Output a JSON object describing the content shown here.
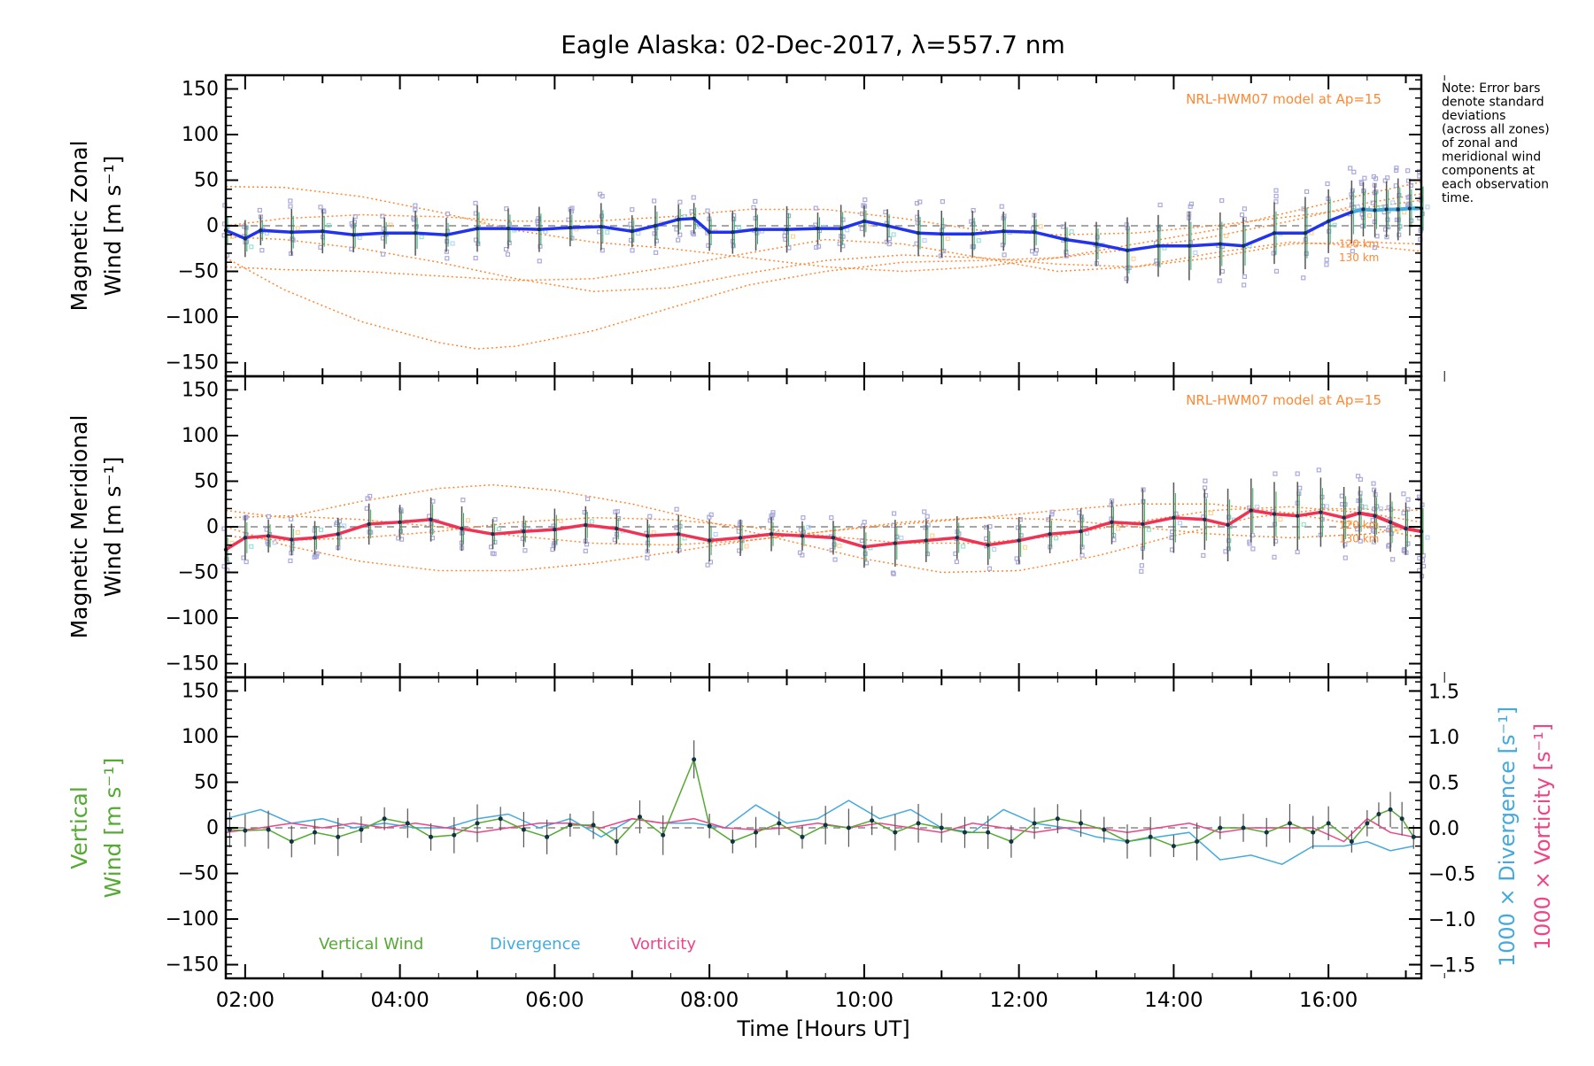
{
  "title": "Eagle Alaska: 02-Dec-2017, λ=557.7 nm",
  "note": [
    "Note: Error bars",
    "denote standard",
    "deviations",
    "(across all zones)",
    "of zonal and",
    "meridional wind",
    "components at",
    "each observation",
    "time."
  ],
  "xaxis": {
    "label": "Time [Hours UT]",
    "range": [
      1.75,
      17.2
    ],
    "ticks": [
      2,
      4,
      6,
      8,
      10,
      12,
      14,
      16
    ],
    "tick_labels": [
      "02:00",
      "04:00",
      "06:00",
      "08:00",
      "10:00",
      "12:00",
      "14:00",
      "16:00"
    ]
  },
  "colors": {
    "zonal": "#2233ee",
    "zonal_tail": "#44aadd",
    "meridional": "#ee3355",
    "model": "#ff8833",
    "scatter": "#aaaadd",
    "vertical": "#55aa33",
    "divergence": "#44aadd",
    "vorticity": "#ee4488",
    "errorbar": "#555555",
    "dashed": "#888888"
  },
  "chart_data": [
    {
      "type": "line",
      "panel": "zonal",
      "ylabel": [
        "Magnetic Zonal",
        "Wind [m s⁻¹]"
      ],
      "ylim": [
        -165,
        165
      ],
      "yticks": [
        -150,
        -100,
        -50,
        0,
        50,
        100,
        150
      ],
      "model_label": "NRL-HWM07 model at Ap=15",
      "altitude_labels": [
        "120 km",
        "130 km"
      ],
      "series": [
        {
          "role": "wind",
          "x": [
            1.75,
            2.0,
            2.2,
            2.6,
            3.0,
            3.4,
            3.8,
            4.2,
            4.6,
            5.0,
            5.4,
            5.8,
            6.2,
            6.6,
            7.0,
            7.3,
            7.6,
            7.8,
            8.0,
            8.3,
            8.6,
            9.0,
            9.4,
            9.7,
            10.0,
            10.3,
            10.7,
            11.0,
            11.4,
            11.8,
            12.2,
            12.6,
            13.0,
            13.4,
            13.8,
            14.2,
            14.6,
            14.9,
            15.3,
            15.7,
            16.0,
            16.3
          ],
          "y": [
            -5,
            -14,
            -5,
            -7,
            -6,
            -10,
            -8,
            -8,
            -10,
            -3,
            -3,
            -4,
            -2,
            -1,
            -6,
            0,
            7,
            8,
            -7,
            -7,
            -4,
            -4,
            -3,
            -3,
            5,
            0,
            -8,
            -9,
            -9,
            -6,
            -7,
            -15,
            -20,
            -27,
            -22,
            -22,
            -20,
            -22,
            -8,
            -8,
            5,
            15
          ]
        },
        {
          "role": "wind-late",
          "x": [
            16.3,
            16.45,
            16.6,
            16.75,
            16.9,
            17.05,
            17.2
          ],
          "y": [
            15,
            18,
            17,
            18,
            18,
            19,
            19
          ]
        },
        {
          "role": "model",
          "x": [
            1.75,
            2.5,
            3.5,
            4.5,
            5.0,
            5.5,
            6.5,
            7.5,
            8.5,
            9.5,
            10.5,
            11.5,
            12.5,
            13.5,
            14.5,
            15.5,
            16.5,
            17.2
          ],
          "y": [
            -35,
            -70,
            -105,
            -128,
            -135,
            -132,
            -115,
            -90,
            -65,
            -50,
            -40,
            -38,
            -35,
            -25,
            -12,
            5,
            25,
            35
          ]
        },
        {
          "role": "model",
          "x": [
            1.75,
            2.5,
            3.5,
            4.5,
            5.5,
            6.5,
            7.5,
            8.5,
            9.5,
            10.5,
            11.5,
            12.5,
            13.5,
            14.5,
            15.5,
            16.5,
            17.2
          ],
          "y": [
            43,
            42,
            32,
            15,
            -5,
            -18,
            -25,
            -35,
            -45,
            -50,
            -45,
            -35,
            -20,
            -5,
            15,
            35,
            48
          ]
        },
        {
          "role": "model",
          "x": [
            1.75,
            2.5,
            3.5,
            4.5,
            5.5,
            6.5,
            7.5,
            8.5,
            9.5,
            10.5,
            11.5,
            12.5,
            13.5,
            14.5,
            15.5,
            16.5,
            17.2
          ],
          "y": [
            -45,
            -48,
            -50,
            -55,
            -60,
            -58,
            -45,
            -30,
            -15,
            -20,
            -35,
            -50,
            -45,
            -30,
            -18,
            -22,
            -28
          ]
        },
        {
          "role": "model",
          "x": [
            1.75,
            2.5,
            3.5,
            4.5,
            5.5,
            6.5,
            7.5,
            8.5,
            9.5,
            10.5,
            11.5,
            12.5,
            13.5,
            14.5,
            15.5,
            16.5,
            17.2
          ],
          "y": [
            -12,
            -15,
            -25,
            -40,
            -58,
            -72,
            -68,
            -52,
            -38,
            -32,
            -35,
            -42,
            -45,
            -35,
            -20,
            -18,
            -20
          ]
        },
        {
          "role": "model",
          "x": [
            1.75,
            2.5,
            3.5,
            4.5,
            5.5,
            6.5,
            7.5,
            8.5,
            9.5,
            10.5,
            11.5,
            12.5,
            13.5,
            14.5,
            15.5,
            16.5,
            17.2
          ],
          "y": [
            0,
            8,
            12,
            10,
            5,
            5,
            10,
            18,
            18,
            8,
            -5,
            -10,
            -8,
            0,
            10,
            20,
            28
          ]
        }
      ]
    },
    {
      "type": "line",
      "panel": "meridional",
      "ylabel": [
        "Magnetic Meridional",
        "Wind [m s⁻¹]"
      ],
      "ylim": [
        -165,
        165
      ],
      "yticks": [
        -150,
        -100,
        -50,
        0,
        50,
        100,
        150
      ],
      "model_label": "NRL-HWM07 model at Ap=15",
      "altitude_labels": [
        "120 km",
        "130 km"
      ],
      "series": [
        {
          "role": "wind",
          "x": [
            1.75,
            2.0,
            2.3,
            2.6,
            2.9,
            3.2,
            3.6,
            4.0,
            4.4,
            4.8,
            5.2,
            5.6,
            6.0,
            6.4,
            6.8,
            7.2,
            7.6,
            8.0,
            8.4,
            8.8,
            9.2,
            9.6,
            10.0,
            10.4,
            10.8,
            11.2,
            11.6,
            12.0,
            12.4,
            12.8,
            13.2,
            13.6,
            14.0,
            14.4,
            14.7,
            15.0,
            15.3,
            15.6,
            15.9,
            16.2
          ],
          "y": [
            -25,
            -12,
            -10,
            -14,
            -12,
            -8,
            3,
            5,
            8,
            -2,
            -8,
            -5,
            -3,
            2,
            -2,
            -10,
            -8,
            -15,
            -12,
            -8,
            -10,
            -12,
            -22,
            -18,
            -15,
            -12,
            -20,
            -15,
            -8,
            -5,
            5,
            3,
            10,
            8,
            2,
            18,
            14,
            12,
            16,
            10
          ]
        },
        {
          "role": "wind-late",
          "x": [
            16.2,
            16.4,
            16.6,
            16.8,
            17.0,
            17.2
          ],
          "y": [
            10,
            15,
            12,
            5,
            -2,
            -5
          ]
        },
        {
          "role": "model",
          "x": [
            1.75,
            2.5,
            3.5,
            4.5,
            5.2,
            6.0,
            7.0,
            8.0,
            9.0,
            10.0,
            11.0,
            12.0,
            13.0,
            14.0,
            15.0,
            16.0,
            17.2
          ],
          "y": [
            18,
            10,
            28,
            42,
            46,
            40,
            25,
            5,
            -15,
            -35,
            -50,
            -48,
            -32,
            -10,
            10,
            20,
            18
          ]
        },
        {
          "role": "model",
          "x": [
            1.75,
            2.5,
            3.5,
            4.5,
            5.5,
            6.5,
            7.5,
            8.5,
            9.5,
            10.5,
            11.5,
            12.5,
            13.5,
            14.5,
            15.5,
            16.5,
            17.2
          ],
          "y": [
            0,
            -20,
            -38,
            -48,
            -48,
            -40,
            -28,
            -15,
            -5,
            3,
            10,
            18,
            25,
            25,
            15,
            0,
            -12
          ]
        },
        {
          "role": "model",
          "x": [
            1.75,
            2.5,
            3.5,
            4.5,
            5.5,
            6.5,
            7.5,
            8.5,
            9.5,
            10.5,
            11.5,
            12.5,
            13.5,
            14.5,
            15.5,
            16.5,
            17.2
          ],
          "y": [
            10,
            12,
            8,
            0,
            -10,
            -18,
            -20,
            -15,
            -5,
            5,
            10,
            8,
            0,
            -8,
            -12,
            -8,
            0
          ]
        },
        {
          "role": "model",
          "x": [
            1.75,
            2.5,
            3.5,
            4.5,
            5.5,
            6.5,
            7.5,
            8.5,
            9.5,
            10.5,
            11.5,
            12.5,
            13.5,
            14.5,
            15.5,
            16.5,
            17.2
          ],
          "y": [
            -10,
            -15,
            -12,
            -5,
            5,
            10,
            8,
            0,
            -10,
            -18,
            -18,
            -10,
            5,
            18,
            22,
            15,
            5
          ]
        }
      ]
    },
    {
      "type": "line",
      "panel": "vertical",
      "ylabel": [
        "Vertical",
        "Wind [m s⁻¹]"
      ],
      "ylim": [
        -165,
        165
      ],
      "yticks": [
        -150,
        -100,
        -50,
        0,
        50,
        100,
        150
      ],
      "y2label_divergence": "1000 × Divergence [s⁻¹]",
      "y2label_vorticity": "1000 × Vorticity [s⁻¹]",
      "y2lim": [
        -1.65,
        1.65
      ],
      "y2ticks": [
        -1.5,
        -1.0,
        -0.5,
        0.0,
        0.5,
        1.0,
        1.5
      ],
      "y2tick_labels": [
        "−1.5",
        "−1.0",
        "−0.5",
        "0.0",
        "0.5",
        "1.0",
        "1.5"
      ],
      "legend": [
        "Vertical Wind",
        "Divergence",
        "Vorticity"
      ],
      "series": [
        {
          "name": "Vertical Wind",
          "x": [
            1.8,
            2.0,
            2.3,
            2.6,
            2.9,
            3.2,
            3.5,
            3.8,
            4.1,
            4.4,
            4.7,
            5.0,
            5.3,
            5.6,
            5.9,
            6.2,
            6.5,
            6.8,
            7.1,
            7.4,
            7.8,
            8.0,
            8.3,
            8.6,
            8.9,
            9.2,
            9.5,
            9.8,
            10.1,
            10.4,
            10.7,
            11.0,
            11.3,
            11.6,
            11.9,
            12.2,
            12.5,
            12.8,
            13.1,
            13.4,
            13.7,
            14.0,
            14.3,
            14.6,
            14.9,
            15.2,
            15.5,
            15.8,
            16.0,
            16.3,
            16.5,
            16.65,
            16.8,
            16.95,
            17.1
          ],
          "y": [
            -2,
            -3,
            -2,
            -15,
            -5,
            -10,
            -2,
            10,
            5,
            -10,
            -8,
            5,
            10,
            -2,
            -10,
            3,
            3,
            -15,
            12,
            -8,
            75,
            2,
            -15,
            -5,
            5,
            -10,
            3,
            0,
            8,
            -5,
            5,
            0,
            -5,
            -5,
            -15,
            5,
            10,
            5,
            -2,
            -15,
            -10,
            -20,
            -15,
            0,
            0,
            -5,
            5,
            -5,
            5,
            -15,
            5,
            15,
            20,
            10,
            -10
          ]
        },
        {
          "name": "Divergence",
          "x": [
            1.75,
            2.2,
            2.6,
            3.0,
            3.4,
            3.8,
            4.2,
            4.6,
            5.0,
            5.4,
            5.8,
            6.2,
            6.6,
            7.0,
            7.4,
            7.8,
            8.2,
            8.6,
            9.0,
            9.4,
            9.8,
            10.2,
            10.6,
            11.0,
            11.4,
            11.8,
            12.2,
            12.6,
            13.0,
            13.4,
            13.8,
            14.2,
            14.6,
            15.0,
            15.4,
            15.8,
            16.2,
            16.5,
            16.8,
            17.1
          ],
          "y": [
            0.1,
            0.2,
            0.05,
            0.1,
            0.0,
            0.05,
            0.0,
            0.0,
            0.1,
            0.15,
            0.0,
            0.1,
            -0.1,
            0.1,
            0.05,
            0.05,
            0.0,
            0.25,
            0.05,
            0.1,
            0.3,
            0.1,
            0.2,
            0.0,
            -0.05,
            0.2,
            0.05,
            0.0,
            -0.1,
            -0.15,
            -0.1,
            -0.05,
            -0.35,
            -0.3,
            -0.4,
            -0.2,
            -0.2,
            -0.15,
            -0.25,
            -0.2
          ]
        },
        {
          "name": "Vorticity",
          "x": [
            1.75,
            2.2,
            2.6,
            3.0,
            3.4,
            3.8,
            4.2,
            4.6,
            5.0,
            5.4,
            5.8,
            6.2,
            6.6,
            7.0,
            7.4,
            7.8,
            8.2,
            8.6,
            9.0,
            9.4,
            9.8,
            10.2,
            10.6,
            11.0,
            11.4,
            11.8,
            12.2,
            12.6,
            13.0,
            13.4,
            13.8,
            14.2,
            14.6,
            15.0,
            15.4,
            15.8,
            16.2,
            16.5,
            16.8,
            17.1
          ],
          "y": [
            -0.05,
            0.0,
            0.05,
            0.0,
            0.05,
            0.0,
            0.05,
            0.0,
            -0.05,
            0.0,
            0.05,
            0.05,
            0.0,
            0.1,
            0.05,
            0.1,
            0.0,
            -0.02,
            0.0,
            0.05,
            0.0,
            0.05,
            0.0,
            -0.05,
            0.05,
            0.0,
            -0.05,
            0.0,
            0.0,
            -0.05,
            0.0,
            0.05,
            -0.05,
            0.0,
            0.0,
            0.0,
            -0.15,
            0.1,
            -0.05,
            -0.1
          ]
        }
      ]
    }
  ]
}
